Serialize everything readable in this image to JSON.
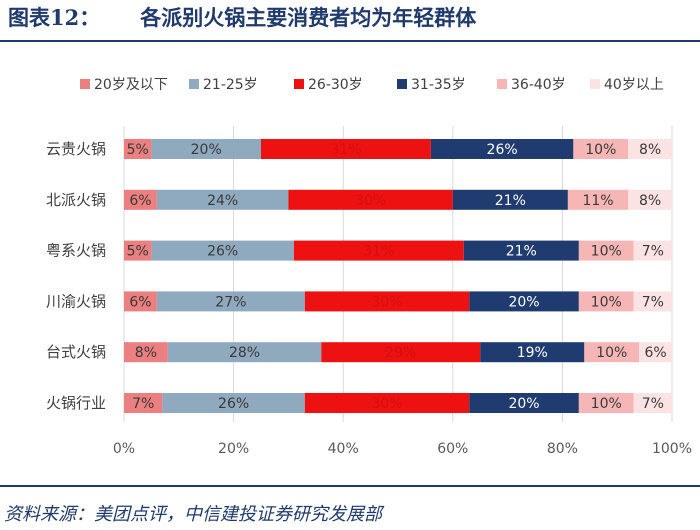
{
  "header": {
    "fig_number": "图表12：",
    "title": "各派别火锅主要消费者均为年轻群体"
  },
  "footer": {
    "source": "资料来源：美团点评，中信建投证券研究发展部"
  },
  "chart_data": {
    "type": "bar",
    "orientation": "horizontal",
    "stacked": true,
    "title": "各派别火锅主要消费者均为年轻群体",
    "xlabel": "",
    "ylabel": "",
    "xlim": [
      0,
      100
    ],
    "x_ticks": [
      "0%",
      "20%",
      "40%",
      "60%",
      "80%",
      "100%"
    ],
    "grid": true,
    "legend_position": "top",
    "categories": [
      "云贵火锅",
      "北派火锅",
      "粤系火锅",
      "川渝火锅",
      "台式火锅",
      "火锅行业"
    ],
    "series": [
      {
        "name": "20岁及以下",
        "color": "#ec7f7f",
        "text_color": "#3a3a3a",
        "values": [
          5,
          6,
          5,
          6,
          8,
          7
        ]
      },
      {
        "name": "21-25岁",
        "color": "#8fa9be",
        "text_color": "#3a3a3a",
        "values": [
          20,
          24,
          26,
          27,
          28,
          26
        ]
      },
      {
        "name": "26-30岁",
        "color": "#ee1111",
        "text_color": "#d40f0f",
        "values": [
          31,
          30,
          31,
          30,
          29,
          30
        ]
      },
      {
        "name": "31-35岁",
        "color": "#1f3b70",
        "text_color": "#ffffff",
        "values": [
          26,
          21,
          21,
          20,
          19,
          20
        ]
      },
      {
        "name": "36-40岁",
        "color": "#f7b6b6",
        "text_color": "#3a3a3a",
        "values": [
          10,
          11,
          10,
          10,
          10,
          10
        ]
      },
      {
        "name": "40岁以上",
        "color": "#fce3e3",
        "text_color": "#3a3a3a",
        "values": [
          8,
          8,
          7,
          7,
          6,
          7
        ]
      }
    ]
  }
}
